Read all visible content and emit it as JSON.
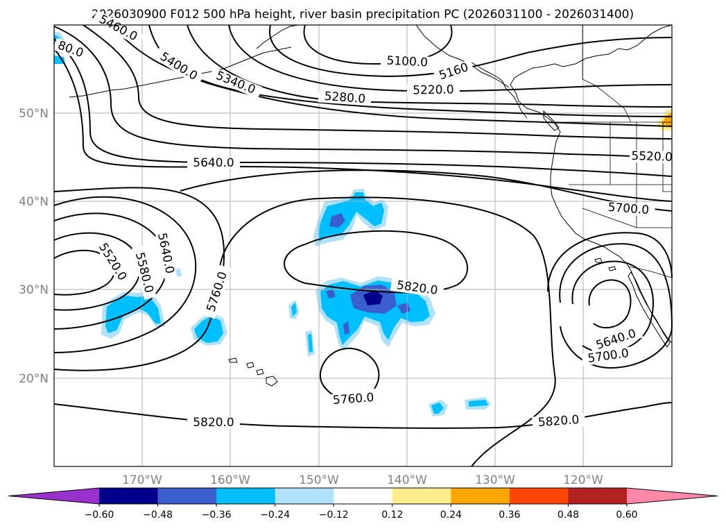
{
  "title": "2026030900 F012 500 hPa height, river basin precipitation PC (2026031100 - 2026031400)",
  "axes": {
    "lon_ticks": [
      "170°W",
      "160°W",
      "150°W",
      "140°W",
      "130°W",
      "120°W"
    ],
    "lat_ticks": [
      "50°N",
      "40°N",
      "30°N",
      "20°N"
    ],
    "tick_color": "#808080",
    "grid": true
  },
  "contour_labels": [
    "5400.0",
    "5460.0",
    "5340.0",
    "5280.0",
    "5220.0",
    "5160",
    "5100.0",
    "5640.0",
    "5520.0",
    "5700.0",
    "5520.0",
    "5580.0",
    "5640.0",
    "5760.0",
    "5820.0",
    "5640.0",
    "5700.0",
    "5760.0",
    "5820.0",
    "5820.0",
    "80.0"
  ],
  "colorbar": {
    "levels": [
      "−0.60",
      "−0.48",
      "−0.36",
      "−0.24",
      "−0.12",
      "0.12",
      "0.24",
      "0.36",
      "0.48",
      "0.60"
    ],
    "colors": [
      "#9932cc",
      "#00008b",
      "#3a5fcd",
      "#00bfff",
      "#afe1fa",
      "#ffffff",
      "#ffec8b",
      "#ffa500",
      "#ff4500",
      "#b22222",
      "#ff88aa"
    ],
    "extend": "both"
  },
  "palette": {
    "land_line": "#000000",
    "contour_line": "#000000",
    "grid_line": "#b0b0b0"
  }
}
